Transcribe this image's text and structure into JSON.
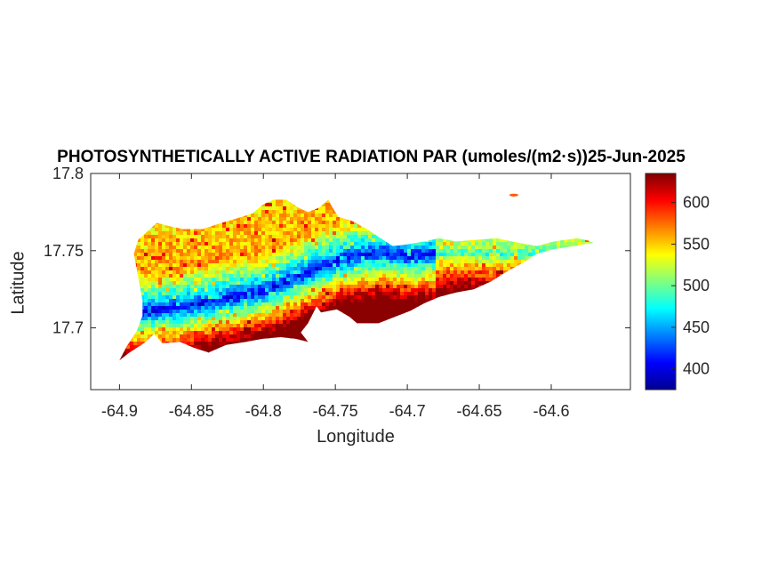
{
  "chart_data": {
    "type": "heatmap",
    "title": "PHOTOSYNTHETICALLY ACTIVE RADIATION PAR (umoles/(m2·s))25-Jun-2025",
    "xlabel": "Longitude",
    "ylabel": "Latitude",
    "xlim": [
      -64.92,
      -64.545
    ],
    "ylim": [
      17.66,
      17.8
    ],
    "xticks": [
      -64.9,
      -64.85,
      -64.8,
      -64.75,
      -64.7,
      -64.65,
      -64.6
    ],
    "xtick_labels": [
      "-64.9",
      "-64.85",
      "-64.8",
      "-64.75",
      "-64.7",
      "-64.65",
      "-64.6"
    ],
    "yticks": [
      17.7,
      17.75,
      17.8
    ],
    "ytick_labels": [
      "17.7",
      "17.75",
      "17.8"
    ],
    "colorbar": {
      "colormap": "jet",
      "range": [
        375,
        635
      ],
      "ticks": [
        400,
        450,
        500,
        550,
        600
      ],
      "tick_labels": [
        "400",
        "450",
        "500",
        "550",
        "600"
      ]
    },
    "grid": false,
    "region_outline_lonlat": [
      [
        -64.9,
        17.679
      ],
      [
        -64.893,
        17.684
      ],
      [
        -64.883,
        17.69
      ],
      [
        -64.876,
        17.696
      ],
      [
        -64.87,
        17.69
      ],
      [
        -64.858,
        17.691
      ],
      [
        -64.848,
        17.687
      ],
      [
        -64.838,
        17.684
      ],
      [
        -64.826,
        17.689
      ],
      [
        -64.812,
        17.691
      ],
      [
        -64.8,
        17.693
      ],
      [
        -64.788,
        17.694
      ],
      [
        -64.778,
        17.693
      ],
      [
        -64.769,
        17.691
      ],
      [
        -64.774,
        17.697
      ],
      [
        -64.769,
        17.703
      ],
      [
        -64.763,
        17.714
      ],
      [
        -64.76,
        17.71
      ],
      [
        -64.749,
        17.712
      ],
      [
        -64.74,
        17.707
      ],
      [
        -64.735,
        17.703
      ],
      [
        -64.72,
        17.703
      ],
      [
        -64.709,
        17.707
      ],
      [
        -64.698,
        17.711
      ],
      [
        -64.688,
        17.716
      ],
      [
        -64.678,
        17.72
      ],
      [
        -64.666,
        17.723
      ],
      [
        -64.654,
        17.725
      ],
      [
        -64.642,
        17.73
      ],
      [
        -64.63,
        17.737
      ],
      [
        -64.62,
        17.742
      ],
      [
        -64.61,
        17.748
      ],
      [
        -64.598,
        17.751
      ],
      [
        -64.584,
        17.753
      ],
      [
        -64.572,
        17.755
      ],
      [
        -64.566,
        17.755
      ],
      [
        -64.582,
        17.758
      ],
      [
        -64.598,
        17.756
      ],
      [
        -64.61,
        17.753
      ],
      [
        -64.622,
        17.755
      ],
      [
        -64.638,
        17.758
      ],
      [
        -64.652,
        17.757
      ],
      [
        -64.666,
        17.756
      ],
      [
        -64.678,
        17.758
      ],
      [
        -64.688,
        17.756
      ],
      [
        -64.7,
        17.754
      ],
      [
        -64.71,
        17.753
      ],
      [
        -64.72,
        17.759
      ],
      [
        -64.728,
        17.764
      ],
      [
        -64.738,
        17.769
      ],
      [
        -64.748,
        17.772
      ],
      [
        -64.752,
        17.778
      ],
      [
        -64.755,
        17.783
      ],
      [
        -64.761,
        17.778
      ],
      [
        -64.769,
        17.775
      ],
      [
        -64.776,
        17.778
      ],
      [
        -64.784,
        17.783
      ],
      [
        -64.793,
        17.783
      ],
      [
        -64.8,
        17.78
      ],
      [
        -64.808,
        17.774
      ],
      [
        -64.818,
        17.771
      ],
      [
        -64.829,
        17.768
      ],
      [
        -64.842,
        17.764
      ],
      [
        -64.856,
        17.764
      ],
      [
        -64.866,
        17.766
      ],
      [
        -64.874,
        17.768
      ],
      [
        -64.88,
        17.763
      ],
      [
        -64.887,
        17.757
      ],
      [
        -64.89,
        17.748
      ],
      [
        -64.888,
        17.738
      ],
      [
        -64.886,
        17.728
      ],
      [
        -64.884,
        17.718
      ],
      [
        -64.884,
        17.708
      ],
      [
        -64.888,
        17.698
      ],
      [
        -64.895,
        17.688
      ],
      [
        -64.9,
        17.679
      ]
    ],
    "islet_lonlat": [
      -64.626,
      17.786
    ],
    "value_field": {
      "description_values": "south coast high (580-630), central ridge band low (390-460), north side moderate (500-560), east arm 480-560",
      "low_band_centerline": [
        [
          -64.885,
          17.71
        ],
        [
          -64.86,
          17.713
        ],
        [
          -64.83,
          17.718
        ],
        [
          -64.8,
          17.724
        ],
        [
          -64.77,
          17.736
        ],
        [
          -64.745,
          17.745
        ],
        [
          -64.72,
          17.749
        ],
        [
          -64.7,
          17.746
        ],
        [
          -64.68,
          17.748
        ]
      ]
    }
  }
}
